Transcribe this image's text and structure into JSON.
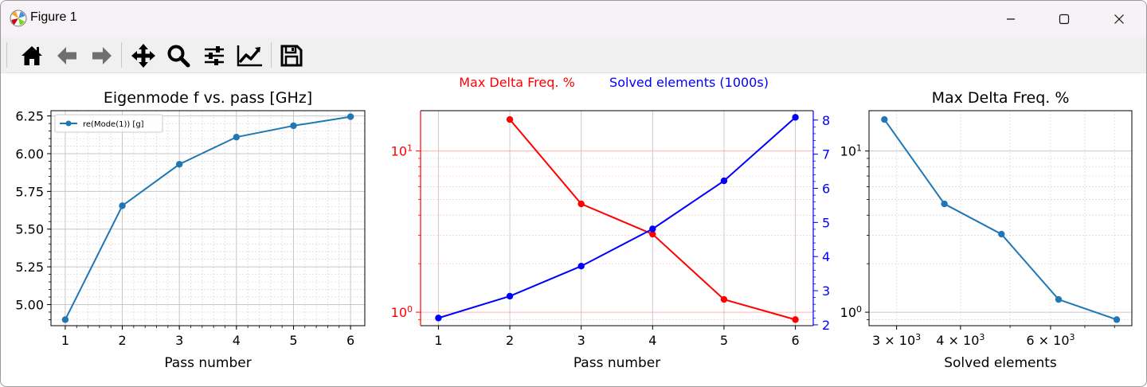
{
  "window": {
    "title": "Figure 1",
    "minimize_icon": "minimize-icon",
    "maximize_icon": "maximize-icon",
    "close_icon": "close-icon"
  },
  "toolbar": {
    "buttons": [
      {
        "name": "home-button",
        "icon": "home-icon"
      },
      {
        "name": "back-button",
        "icon": "arrow-left-icon"
      },
      {
        "name": "forward-button",
        "icon": "arrow-right-icon"
      },
      {
        "name": "pan-button",
        "icon": "move-icon"
      },
      {
        "name": "zoom-button",
        "icon": "magnifier-icon"
      },
      {
        "name": "configure-subplots-button",
        "icon": "sliders-icon"
      },
      {
        "name": "edit-axes-button",
        "icon": "chart-line-icon"
      },
      {
        "name": "save-button",
        "icon": "floppy-disk-icon"
      }
    ]
  },
  "colors": {
    "series_blue": "#1f77b4",
    "red": "#ff0000",
    "blue": "#0000ff"
  },
  "chart_data": [
    {
      "type": "line",
      "title": "Eigenmode f vs. pass [GHz]",
      "xlabel": "Pass number",
      "ylabel": "",
      "x": [
        1,
        2,
        3,
        4,
        5,
        6
      ],
      "xticks": [
        "1",
        "2",
        "3",
        "4",
        "5",
        "6"
      ],
      "series": [
        {
          "name": "re(Mode(1)) [g]",
          "values": [
            4.9,
            5.655,
            5.93,
            6.11,
            6.185,
            6.245
          ]
        }
      ],
      "xlim": [
        0.75,
        6.25
      ],
      "ylim": [
        4.86,
        6.285
      ],
      "yticks": [
        "5.00",
        "5.25",
        "5.50",
        "5.75",
        "6.00",
        "6.25"
      ],
      "grid": true,
      "legend": "upper-left"
    },
    {
      "type": "line",
      "legend_labels": [
        "Max Delta Freq. %",
        "Solved elements (1000s)"
      ],
      "xlabel": "Pass number",
      "x": [
        1,
        2,
        3,
        4,
        5,
        6
      ],
      "xticks": [
        "1",
        "2",
        "3",
        "4",
        "5",
        "6"
      ],
      "xlim": [
        0.75,
        6.25
      ],
      "left_axis": {
        "scale": "log",
        "ylim": [
          0.825,
          17.8
        ],
        "ticks": [
          "10^0",
          "10^1"
        ],
        "color": "#ff0000"
      },
      "right_axis": {
        "scale": "linear",
        "ylim": [
          1.975,
          8.275
        ],
        "ticks": [
          "2",
          "3",
          "4",
          "5",
          "6",
          "7",
          "8"
        ],
        "color": "#0000ff"
      },
      "series": [
        {
          "name": "Max Delta Freq. %",
          "axis": "left",
          "x": [
            2,
            3,
            4,
            5,
            6
          ],
          "values": [
            15.7,
            4.7,
            3.05,
            1.2,
            0.9
          ]
        },
        {
          "name": "Solved elements (1000s)",
          "axis": "right",
          "x": [
            1,
            2,
            3,
            4,
            5,
            6
          ],
          "values": [
            2.2,
            2.84,
            3.72,
            4.81,
            6.22,
            8.08
          ]
        }
      ],
      "grid": true
    },
    {
      "type": "line",
      "title": "Max Delta Freq. %",
      "xlabel": "Solved elements",
      "xscale": "log",
      "yscale": "log",
      "x": [
        2840,
        3720,
        4810,
        6220,
        8080
      ],
      "values": [
        15.7,
        4.7,
        3.05,
        1.2,
        0.9
      ],
      "xlim": [
        2650,
        8650
      ],
      "ylim": [
        0.825,
        17.8
      ],
      "xticks": [
        "3 × 10^3",
        "4 × 10^3",
        "6 × 10^3"
      ],
      "yticks": [
        "10^0",
        "10^1"
      ],
      "grid": true
    }
  ]
}
